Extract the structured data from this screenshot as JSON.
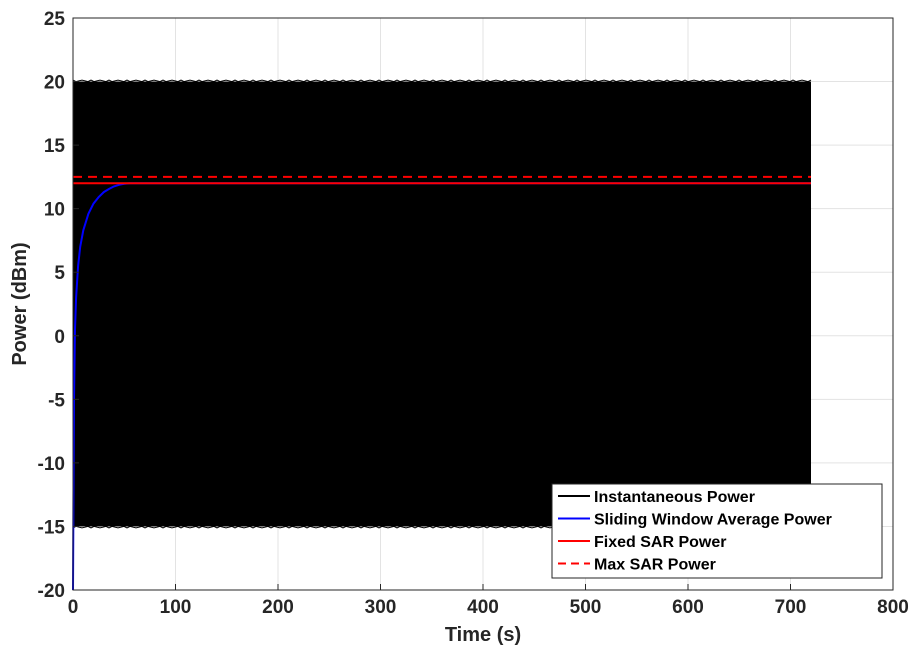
{
  "chart_data": {
    "type": "line",
    "xlabel": "Time (s)",
    "ylabel": "Power (dBm)",
    "xlim": [
      0,
      800
    ],
    "ylim": [
      -20,
      25
    ],
    "xticks": [
      0,
      100,
      200,
      300,
      400,
      500,
      600,
      700,
      800
    ],
    "yticks": [
      -20,
      -15,
      -10,
      -5,
      0,
      5,
      10,
      15,
      20,
      25
    ],
    "grid": true,
    "legend_position": "bottom-right",
    "series": [
      {
        "name": "Instantaneous Power",
        "color": "#000000",
        "style": "solid",
        "description_type": "band",
        "x_range": [
          0,
          720
        ],
        "y_low": -15,
        "y_high": 20
      },
      {
        "name": "Sliding Window Average Power",
        "color": "#0000ff",
        "style": "solid",
        "x": [
          0,
          0.5,
          1,
          2,
          3,
          5,
          7,
          10,
          15,
          20,
          25,
          30,
          35,
          40,
          45,
          50,
          55,
          60,
          720
        ],
        "y": [
          -20,
          -12,
          -5,
          0.5,
          3,
          5.5,
          7,
          8.3,
          9.6,
          10.4,
          10.9,
          11.3,
          11.55,
          11.75,
          11.88,
          11.96,
          12.0,
          12.0,
          12.0
        ]
      },
      {
        "name": "Fixed SAR Power",
        "color": "#ff0000",
        "style": "solid",
        "x": [
          0,
          720
        ],
        "y": [
          12,
          12
        ]
      },
      {
        "name": "Max SAR Power",
        "color": "#ff0000",
        "style": "dashed",
        "x": [
          0,
          720
        ],
        "y": [
          12.5,
          12.5
        ]
      }
    ]
  }
}
